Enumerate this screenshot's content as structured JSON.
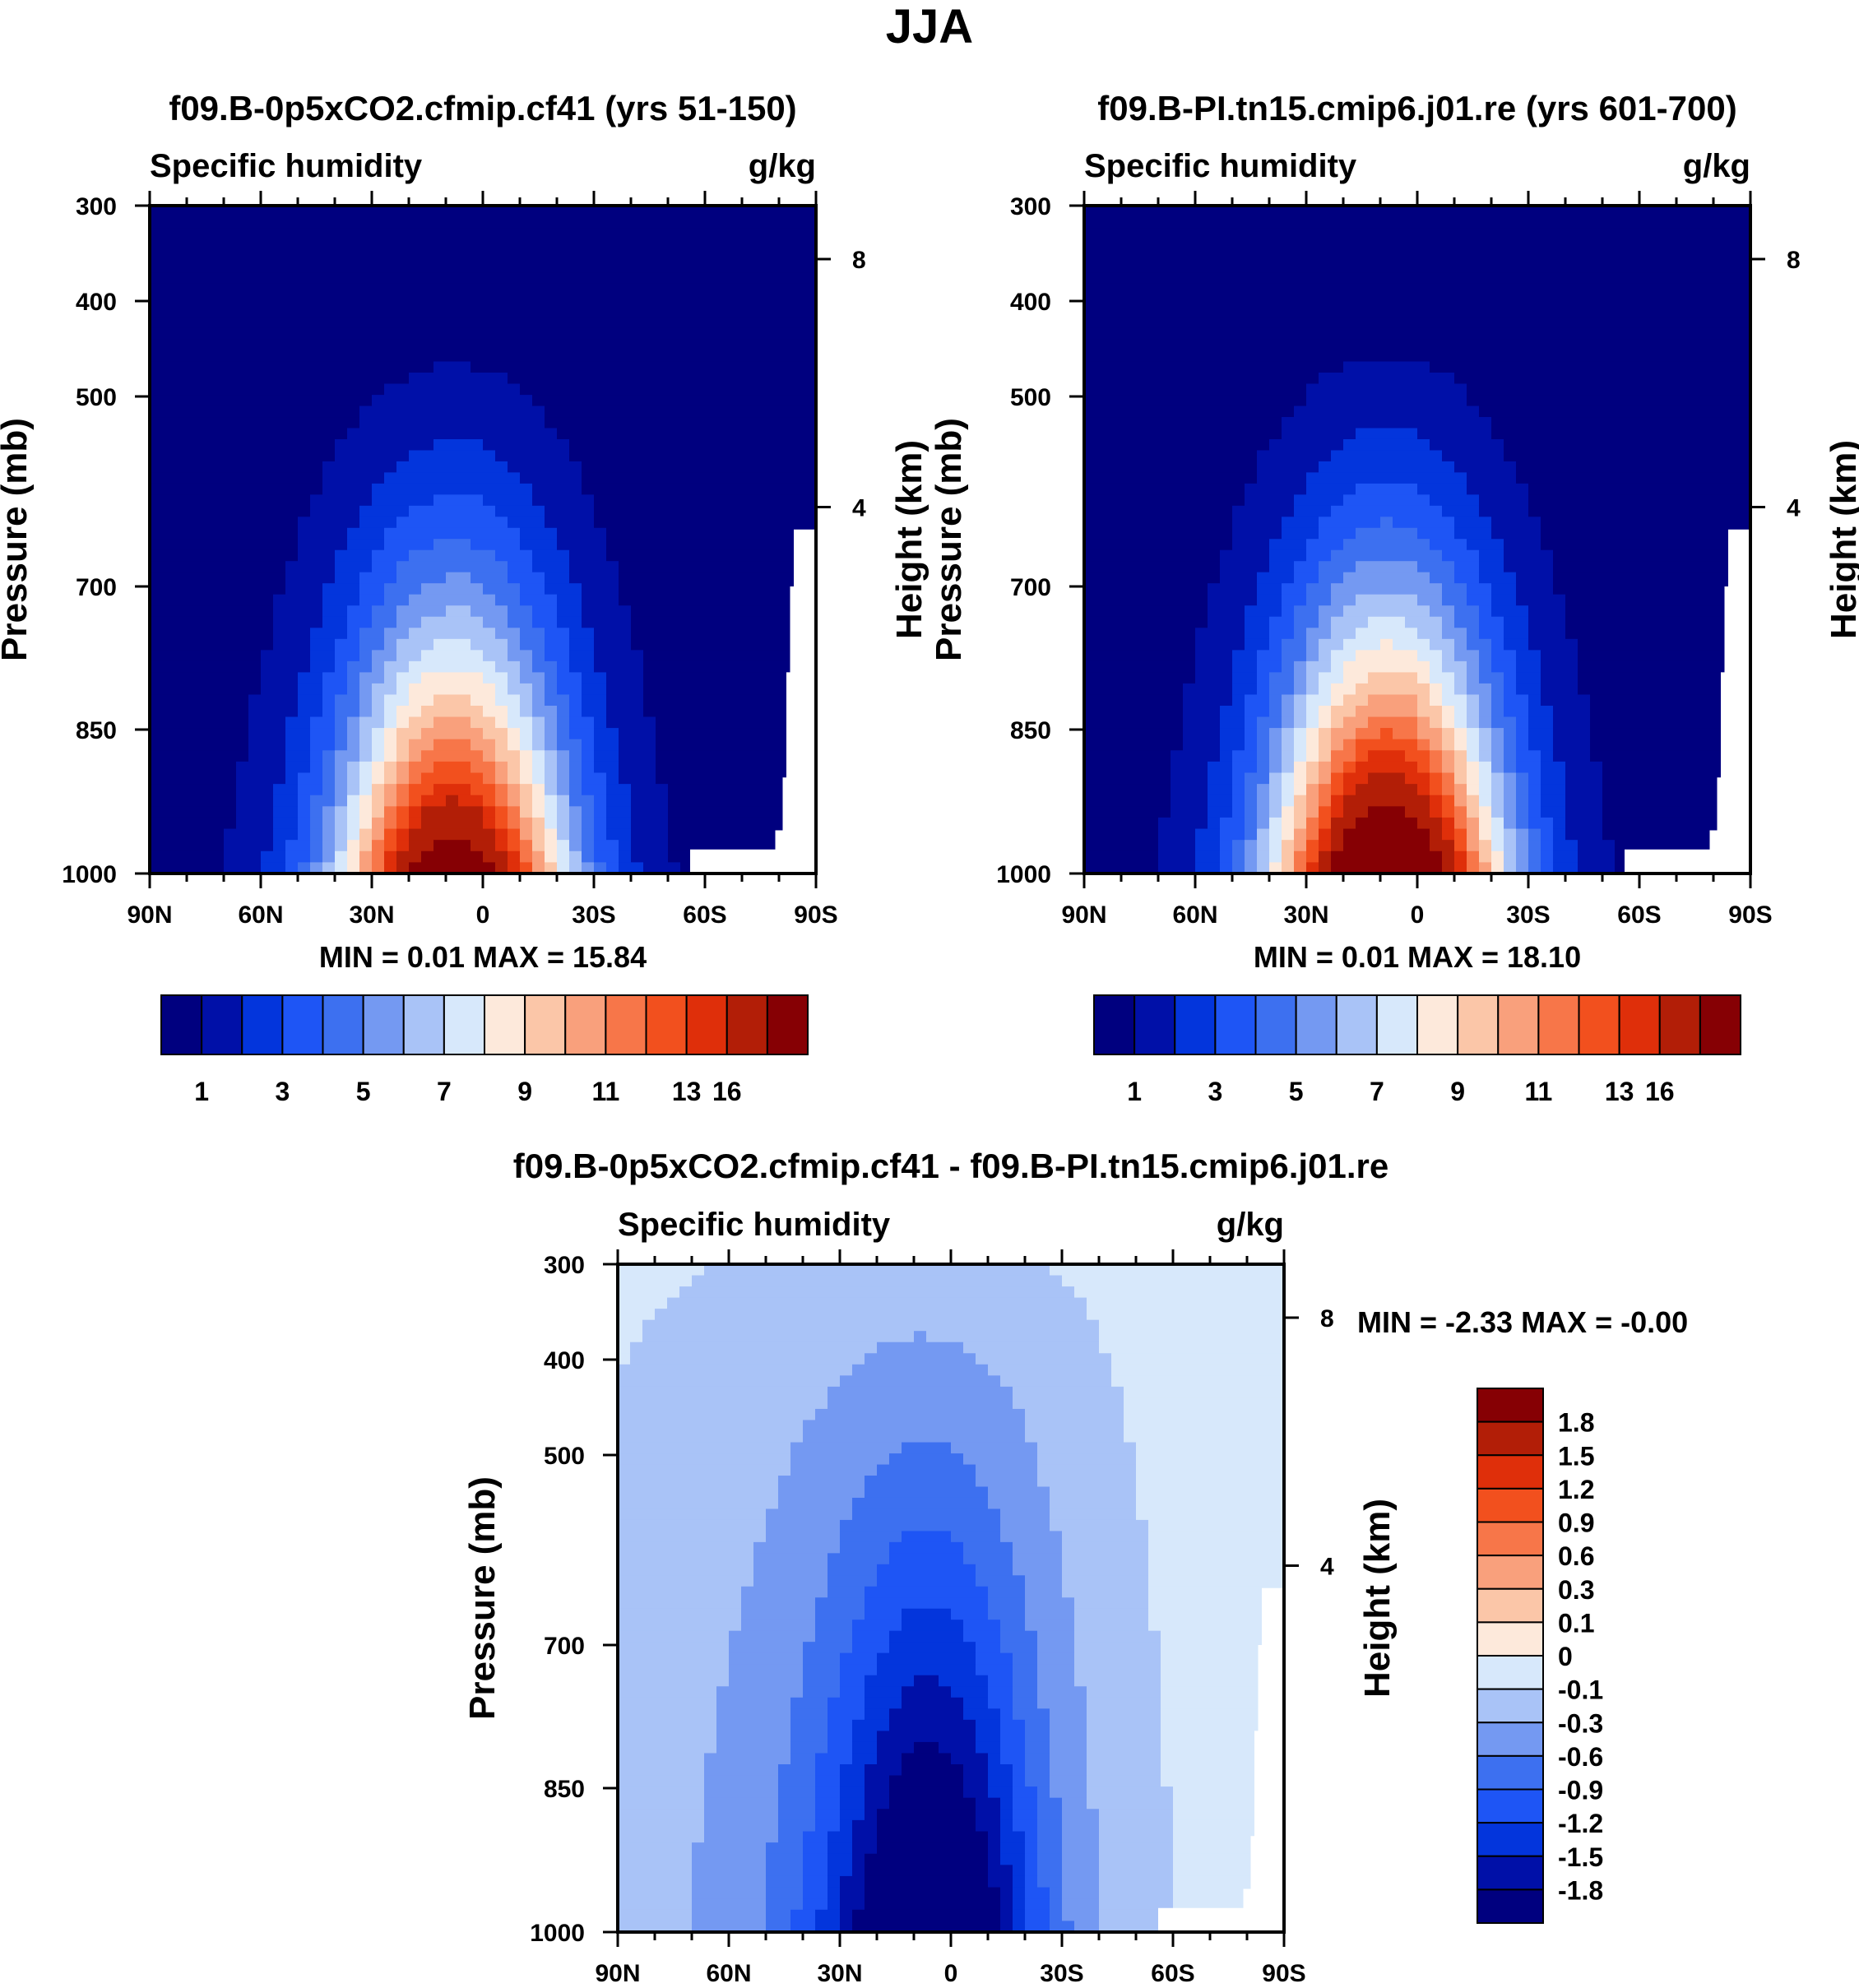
{
  "page_title": "JJA",
  "colors": {
    "seq": [
      "#00007f",
      "#0010a8",
      "#0335dc",
      "#1e55f5",
      "#3d70f0",
      "#7499f2",
      "#a9c3f7",
      "#d7e8fb",
      "#fde9db",
      "#fbc6a8",
      "#f9a07c",
      "#f77649",
      "#f2501e",
      "#df2f0a",
      "#b21e07",
      "#860004"
    ],
    "div": [
      "#00007f",
      "#0010a8",
      "#0335dc",
      "#1e55f5",
      "#3d70f0",
      "#7499f2",
      "#a9c3f7",
      "#d7e8fb",
      "#fde9db",
      "#fbc6a8",
      "#f9a07c",
      "#f77649",
      "#f2501e",
      "#df2f0a",
      "#b21e07",
      "#860004"
    ]
  },
  "chart_data": [
    {
      "type": "heatmap",
      "id": "panel1",
      "title": "f09.B-0p5xCO2.cfmip.cf41 (yrs 51-150)",
      "left_label": "Specific humidity",
      "units": "g/kg",
      "ylabel": "Pressure (mb)",
      "y2label": "Height (km)",
      "x_ticklabels": [
        "90N",
        "60N",
        "30N",
        "0",
        "30S",
        "60S",
        "90S"
      ],
      "x_range": [
        90,
        -90
      ],
      "y_ticklabels": [
        "300",
        "400",
        "500",
        "700",
        "850",
        "1000"
      ],
      "y_range": [
        300,
        1000
      ],
      "y2_ticklabels": [
        "8",
        "4"
      ],
      "stats": {
        "min_label": "MIN =",
        "min": "0.01",
        "max_label": "MAX =",
        "max": "15.84"
      },
      "peak": {
        "lat": 8,
        "value": 15.84
      },
      "colorbar_labels": [
        "1",
        "3",
        "5",
        "7",
        "9",
        "11",
        "13",
        "16"
      ]
    },
    {
      "type": "heatmap",
      "id": "panel2",
      "title": "f09.B-PI.tn15.cmip6.j01.re (yrs 601-700)",
      "left_label": "Specific humidity",
      "units": "g/kg",
      "ylabel": "Pressure (mb)",
      "y2label": "Height (km)",
      "x_ticklabels": [
        "90N",
        "60N",
        "30N",
        "0",
        "30S",
        "60S",
        "90S"
      ],
      "x_range": [
        90,
        -90
      ],
      "y_ticklabels": [
        "300",
        "400",
        "500",
        "700",
        "850",
        "1000"
      ],
      "y_range": [
        300,
        1000
      ],
      "y2_ticklabels": [
        "8",
        "4"
      ],
      "stats": {
        "min_label": "MIN =",
        "min": "0.01",
        "max_label": "MAX =",
        "max": "18.10"
      },
      "peak": {
        "lat": 8,
        "value": 18.1
      },
      "colorbar_labels": [
        "1",
        "3",
        "5",
        "7",
        "9",
        "11",
        "13",
        "16"
      ]
    },
    {
      "type": "heatmap",
      "id": "panel3",
      "title": "f09.B-0p5xCO2.cfmip.cf41 - f09.B-PI.tn15.cmip6.j01.re",
      "left_label": "Specific humidity",
      "units": "g/kg",
      "ylabel": "Pressure (mb)",
      "y2label": "Height (km)",
      "x_ticklabels": [
        "90N",
        "60N",
        "30N",
        "0",
        "30S",
        "60S",
        "90S"
      ],
      "x_range": [
        90,
        -90
      ],
      "y_ticklabels": [
        "300",
        "400",
        "500",
        "700",
        "850",
        "1000"
      ],
      "y_range": [
        300,
        1000
      ],
      "y2_ticklabels": [
        "8",
        "4"
      ],
      "stats": {
        "min_label": "MIN =",
        "min": "-2.33",
        "max_label": "MAX =",
        "max": "-0.00"
      },
      "colorbar_labels": [
        "1.8",
        "1.5",
        "1.2",
        "0.9",
        "0.6",
        "0.3",
        "0.1",
        "0",
        "-0.1",
        "-0.3",
        "-0.6",
        "-0.9",
        "-1.2",
        "-1.5",
        "-1.8"
      ]
    }
  ]
}
